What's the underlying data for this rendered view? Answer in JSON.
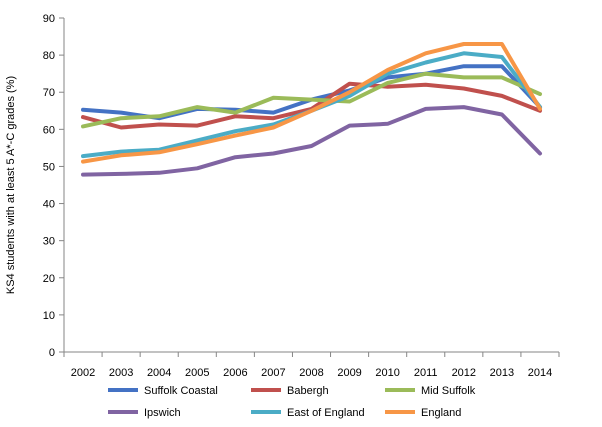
{
  "chart_data": {
    "type": "line",
    "title": "",
    "xlabel": "",
    "ylabel": "KS4 students with at least 5 A*-C grades (%)",
    "ylim": [
      0,
      90
    ],
    "yticks": [
      0,
      10,
      20,
      30,
      40,
      50,
      60,
      70,
      80,
      90
    ],
    "x": [
      "2002",
      "2003",
      "2004",
      "2005",
      "2006",
      "2007",
      "2008",
      "2009",
      "2010",
      "2011",
      "2012",
      "2013",
      "2014"
    ],
    "grid": false,
    "legend_position": "bottom",
    "series": [
      {
        "name": "Suffolk Coastal",
        "color": "#4472C4",
        "values": [
          65.3,
          64.5,
          63.0,
          65.5,
          65.3,
          64.5,
          68.0,
          70.5,
          74.0,
          75.0,
          77.0,
          77.0,
          66.0
        ]
      },
      {
        "name": "Babergh",
        "color": "#C0504D",
        "values": [
          63.3,
          60.5,
          61.3,
          61.0,
          63.5,
          63.0,
          65.5,
          72.3,
          71.5,
          72.0,
          71.0,
          69.0,
          65.0
        ]
      },
      {
        "name": "Mid Suffolk",
        "color": "#9BBB59",
        "values": [
          60.8,
          63.0,
          63.5,
          66.0,
          64.5,
          68.5,
          68.0,
          67.5,
          72.5,
          75.0,
          74.0,
          74.0,
          69.5
        ]
      },
      {
        "name": "Ipswich",
        "color": "#8064A2",
        "values": [
          47.8,
          48.0,
          48.3,
          49.5,
          52.5,
          53.5,
          55.5,
          61.0,
          61.5,
          65.5,
          66.0,
          64.0,
          53.5
        ]
      },
      {
        "name": "East of England",
        "color": "#4BACC6",
        "values": [
          52.8,
          54.0,
          54.5,
          57.0,
          59.5,
          61.3,
          65.0,
          69.0,
          75.0,
          78.0,
          80.5,
          79.5,
          66.0
        ]
      },
      {
        "name": "England",
        "color": "#F79646",
        "values": [
          51.3,
          53.0,
          53.8,
          56.0,
          58.3,
          60.5,
          65.0,
          70.0,
          76.0,
          80.5,
          83.0,
          83.0,
          65.5
        ]
      }
    ]
  }
}
